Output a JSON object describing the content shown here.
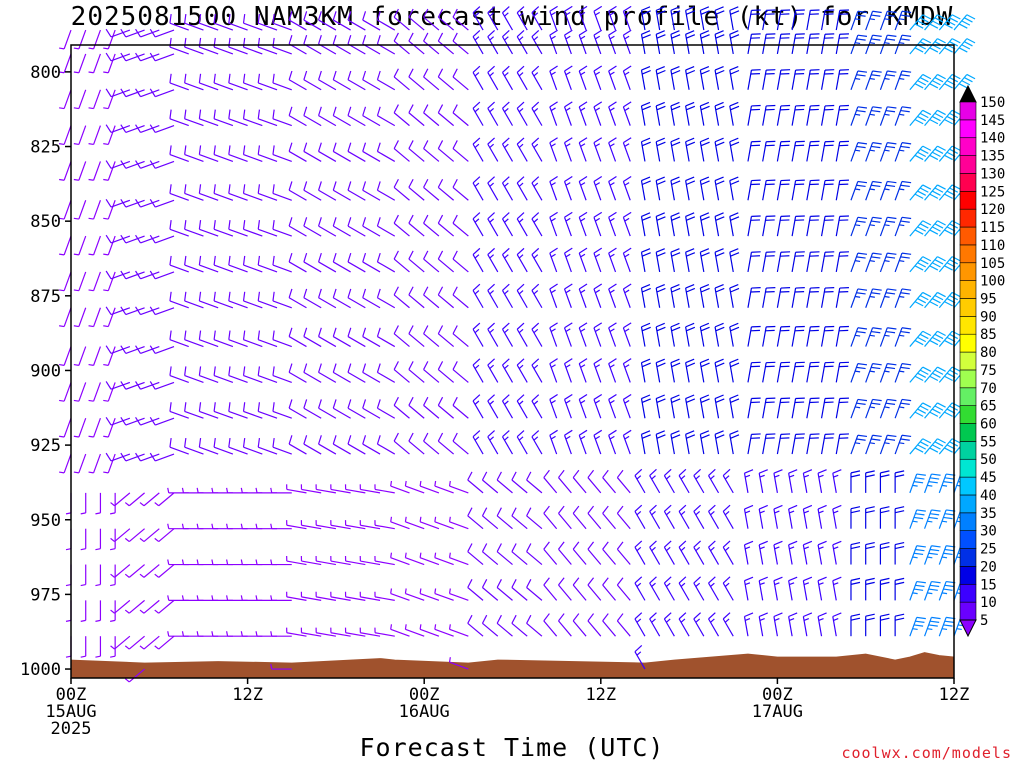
{
  "chart_data": {
    "type": "wind-barb-profile",
    "title": "2025081500 NAM3KM forecast wind profile (kt) for KMDW",
    "xlabel": "Forecast Time (UTC)",
    "ylabel": "",
    "credit": "coolwx.com/models",
    "x_hours_range": [
      0,
      60
    ],
    "y_pressure_range": [
      1003,
      791
    ],
    "y_ticks": [
      800,
      825,
      850,
      875,
      900,
      925,
      950,
      975,
      1000
    ],
    "x_ticks": [
      {
        "hour": 0,
        "lines": [
          "00Z",
          "15AUG",
          "2025"
        ]
      },
      {
        "hour": 12,
        "lines": [
          "12Z"
        ]
      },
      {
        "hour": 24,
        "lines": [
          "00Z",
          "16AUG"
        ]
      },
      {
        "hour": 36,
        "lines": [
          "12Z"
        ]
      },
      {
        "hour": 48,
        "lines": [
          "00Z",
          "17AUG"
        ]
      },
      {
        "hour": 60,
        "lines": [
          "12Z"
        ]
      }
    ],
    "barb_pressure_levels": [
      786,
      794,
      806,
      818,
      830,
      843,
      855,
      867,
      879,
      892,
      904,
      916,
      928,
      941,
      953,
      965,
      977,
      989,
      1000
    ],
    "barb_hours": [
      0,
      1,
      2,
      3,
      4,
      5,
      6,
      7,
      8,
      9,
      10,
      11,
      12,
      13,
      14,
      15,
      16,
      17,
      18,
      19,
      20,
      21,
      22,
      23,
      24,
      25,
      26,
      27,
      28,
      29,
      30,
      31,
      32,
      33,
      34,
      35,
      36,
      37,
      38,
      39,
      40,
      41,
      42,
      43,
      44,
      45,
      46,
      47,
      48,
      49,
      50,
      51,
      52,
      53,
      54,
      55,
      56,
      57,
      58,
      59,
      60
    ],
    "wind_segments": [
      {
        "from_hour": 0,
        "to_hour": 4,
        "direction_deg": 200,
        "speed_kt": 5
      },
      {
        "from_hour": 4,
        "to_hour": 8,
        "direction_deg": 250,
        "speed_kt": 10
      },
      {
        "from_hour": 8,
        "to_hour": 16,
        "direction_deg": 290,
        "speed_kt": 10
      },
      {
        "from_hour": 16,
        "to_hour": 23,
        "direction_deg": 300,
        "speed_kt": 10
      },
      {
        "from_hour": 23,
        "to_hour": 28,
        "direction_deg": 310,
        "speed_kt": 12
      },
      {
        "from_hour": 28,
        "to_hour": 33,
        "direction_deg": 330,
        "speed_kt": 15
      },
      {
        "from_hour": 33,
        "to_hour": 39,
        "direction_deg": 340,
        "speed_kt": 15
      },
      {
        "from_hour": 39,
        "to_hour": 46,
        "direction_deg": 350,
        "speed_kt": 20
      },
      {
        "from_hour": 46,
        "to_hour": 53,
        "direction_deg": 10,
        "speed_kt": 20
      },
      {
        "from_hour": 53,
        "to_hour": 57,
        "direction_deg": 20,
        "speed_kt": 25
      },
      {
        "from_hour": 57,
        "to_hour": 61,
        "direction_deg": 40,
        "speed_kt": 40
      }
    ],
    "surface_pressure": [
      {
        "hour": 0,
        "hpa": 997
      },
      {
        "hour": 5,
        "hpa": 998
      },
      {
        "hour": 10,
        "hpa": 997.5
      },
      {
        "hour": 15,
        "hpa": 998
      },
      {
        "hour": 19,
        "hpa": 997
      },
      {
        "hour": 21,
        "hpa": 996.5
      },
      {
        "hour": 22,
        "hpa": 997
      },
      {
        "hour": 27,
        "hpa": 998
      },
      {
        "hour": 29,
        "hpa": 997
      },
      {
        "hour": 39,
        "hpa": 998
      },
      {
        "hour": 41,
        "hpa": 997
      },
      {
        "hour": 46,
        "hpa": 995
      },
      {
        "hour": 48,
        "hpa": 996
      },
      {
        "hour": 52,
        "hpa": 996
      },
      {
        "hour": 54,
        "hpa": 995
      },
      {
        "hour": 56,
        "hpa": 997
      },
      {
        "hour": 57,
        "hpa": 996
      },
      {
        "hour": 58,
        "hpa": 994.5
      },
      {
        "hour": 59,
        "hpa": 995.5
      },
      {
        "hour": 60,
        "hpa": 996
      }
    ],
    "surface_color": "#a0522d",
    "colorbar": {
      "labels": [
        5,
        10,
        15,
        20,
        25,
        30,
        35,
        40,
        45,
        50,
        55,
        60,
        65,
        70,
        75,
        80,
        85,
        90,
        95,
        100,
        105,
        110,
        115,
        120,
        125,
        130,
        135,
        140,
        145,
        150
      ],
      "colors": [
        "#8c00ff",
        "#6a00ff",
        "#3c00ff",
        "#0000e6",
        "#0030e6",
        "#0050ff",
        "#0080ff",
        "#00a8ff",
        "#00c8ff",
        "#00e6d2",
        "#00d2a0",
        "#00c850",
        "#32dc32",
        "#64f064",
        "#a0ff50",
        "#d2ff3c",
        "#ffff00",
        "#ffe600",
        "#ffcc00",
        "#ffb400",
        "#ff9600",
        "#ff7800",
        "#ff5a00",
        "#ff2800",
        "#ff0000",
        "#ff0050",
        "#ff0096",
        "#ff00c8",
        "#ff00ff",
        "#e600e6"
      ]
    }
  }
}
